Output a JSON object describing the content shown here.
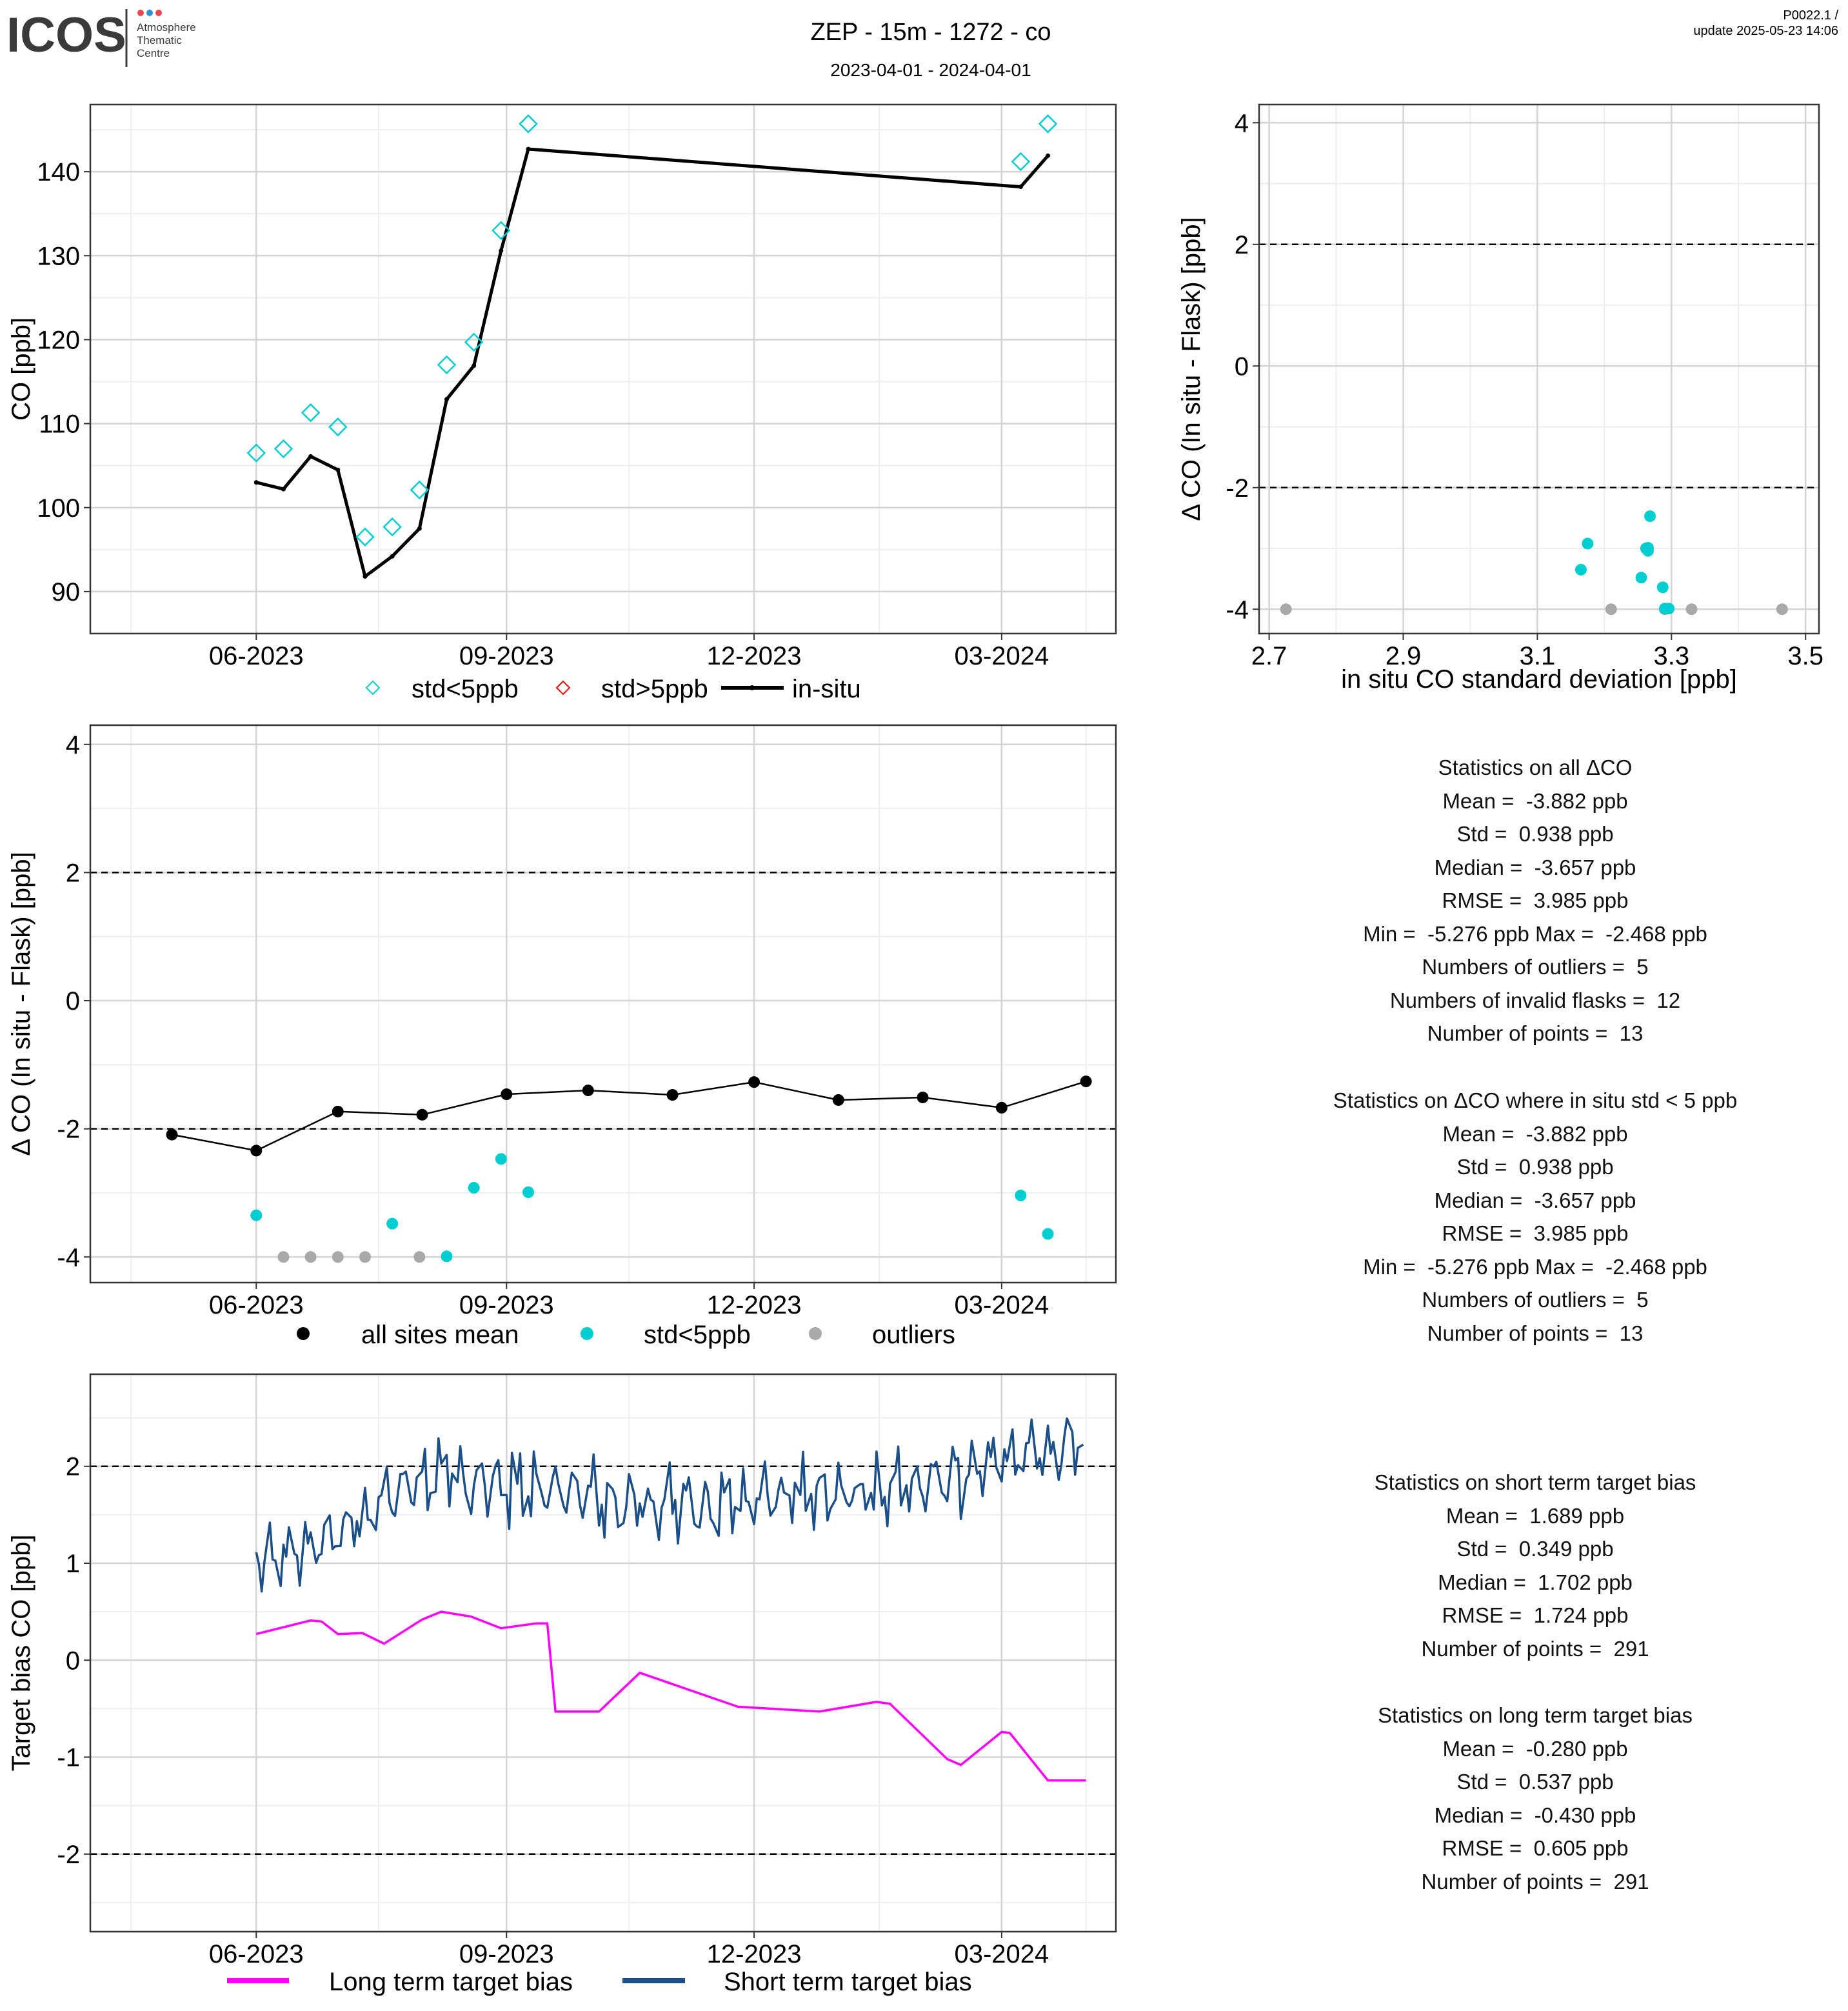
{
  "header": {
    "logo_text": "ICOS",
    "logo_sub": [
      "Atmosphere",
      "Thematic",
      "Centre"
    ],
    "title": "ZEP - 15m - 1272 - co",
    "subtitle": "2023-04-01 - 2024-04-01",
    "version": "P0022.1 /",
    "update": "update  2025-05-23 14:06"
  },
  "colors": {
    "cyan": "#00CED1",
    "grey": "#A9A9A9",
    "black": "#000000",
    "red": "#FF0000",
    "magenta": "#FF00FF",
    "navy": "#1B4F8A",
    "grid_major": "#D3D3D3",
    "grid_minor": "#EEEEEE"
  },
  "legends": {
    "p1": [
      "std<5ppb",
      "std>5ppb",
      "in-situ"
    ],
    "p3": [
      "all sites mean",
      "std<5ppb",
      "outliers"
    ],
    "p4": [
      "Long term target bias",
      "Short term target bias"
    ]
  },
  "stats": {
    "all": {
      "title": "Statistics on all ΔCO",
      "lines": [
        "Mean =  -3.882 ppb",
        "Std =  0.938 ppb",
        "Median =  -3.657 ppb",
        "RMSE =  3.985 ppb",
        "Min =  -5.276 ppb Max =  -2.468 ppb",
        "Numbers of outliers =  5",
        "Numbers of invalid flasks =  12",
        "Number of points =  13"
      ]
    },
    "std5": {
      "title": "Statistics on ΔCO where in situ std < 5 ppb",
      "lines": [
        "Mean =  -3.882 ppb",
        "Std =  0.938 ppb",
        "Median =  -3.657 ppb",
        "RMSE =  3.985 ppb",
        "Min =  -5.276 ppb Max =  -2.468 ppb",
        "Numbers of outliers =  5",
        "Number of points =  13"
      ]
    },
    "short": {
      "title": "Statistics on short term target bias",
      "lines": [
        "Mean =  1.689 ppb",
        "Std =  0.349 ppb",
        "Median =  1.702 ppb",
        "RMSE =  1.724 ppb",
        "Number of points =  291"
      ]
    },
    "long": {
      "title": "Statistics on long term target bias",
      "lines": [
        "Mean =  -0.280 ppb",
        "Std =  0.537 ppb",
        "Median =  -0.430 ppb",
        "RMSE =  0.605 ppb",
        "Number of points =  291"
      ]
    }
  },
  "chart_data": [
    {
      "id": "co_timeseries",
      "type": "line",
      "ylabel": "CO [ppb]",
      "x_ticks": [
        "06-2023",
        "09-2023",
        "12-2023",
        "03-2024"
      ],
      "x_tick_dates": [
        "2023-06-01",
        "2023-09-01",
        "2023-12-01",
        "2024-03-01"
      ],
      "xlim": [
        "2023-04-01",
        "2024-04-12"
      ],
      "ylim": [
        85,
        148
      ],
      "y_ticks": [
        90,
        100,
        110,
        120,
        130,
        140
      ],
      "series": [
        {
          "name": "std<5ppb",
          "x": [
            "2023-06-01",
            "2023-06-11",
            "2023-06-21",
            "2023-07-01",
            "2023-07-11",
            "2023-07-21",
            "2023-07-31",
            "2023-08-10",
            "2023-08-20",
            "2023-08-30",
            "2023-09-09",
            "2024-03-08",
            "2024-03-18"
          ],
          "y": [
            106.5,
            107.0,
            111.3,
            109.6,
            96.5,
            97.7,
            102.1,
            117.0,
            119.7,
            133.0,
            145.7,
            141.2,
            145.7
          ]
        },
        {
          "name": "std>5ppb",
          "x": [],
          "y": []
        },
        {
          "name": "in-situ",
          "x": [
            "2023-06-01",
            "2023-06-11",
            "2023-06-21",
            "2023-07-01",
            "2023-07-11",
            "2023-07-21",
            "2023-07-31",
            "2023-08-10",
            "2023-08-20",
            "2023-08-30",
            "2023-09-09",
            "2024-03-08",
            "2024-03-18"
          ],
          "y": [
            103.0,
            102.2,
            106.1,
            104.5,
            91.8,
            94.2,
            97.5,
            112.9,
            116.9,
            130.6,
            142.7,
            138.2,
            141.9
          ]
        }
      ]
    },
    {
      "id": "delta_vs_std",
      "type": "scatter",
      "xlabel": "in situ CO standard deviation [ppb]",
      "ylabel": "Δ CO (In situ - Flask) [ppb]",
      "xlim": [
        2.685,
        3.52
      ],
      "ylim": [
        -4.4,
        4.3
      ],
      "x_ticks": [
        2.7,
        2.9,
        3.1,
        3.3,
        3.5
      ],
      "y_ticks": [
        -4,
        -2,
        0,
        2,
        4
      ],
      "hlines": [
        2,
        -2
      ],
      "series": [
        {
          "name": "std<5ppb",
          "x": [
            3.165,
            3.175,
            3.255,
            3.262,
            3.265,
            3.265,
            3.268,
            3.287,
            3.29,
            3.296
          ],
          "y": [
            -3.35,
            -2.92,
            -3.48,
            -3.0,
            -3.04,
            -2.99,
            -2.47,
            -3.64,
            -3.99,
            -3.99
          ]
        },
        {
          "name": "outliers",
          "x": [
            2.725,
            3.21,
            3.29,
            3.33,
            3.465
          ],
          "y": [
            -4.0,
            -4.0,
            -4.0,
            -4.0,
            -4.0
          ]
        }
      ]
    },
    {
      "id": "delta_timeseries",
      "type": "scatter",
      "ylabel": "Δ CO (In situ - Flask) [ppb]",
      "x_ticks": [
        "06-2023",
        "09-2023",
        "12-2023",
        "03-2024"
      ],
      "x_tick_dates": [
        "2023-06-01",
        "2023-09-01",
        "2023-12-01",
        "2024-03-01"
      ],
      "xlim": [
        "2023-04-01",
        "2024-04-12"
      ],
      "ylim": [
        -4.4,
        4.3
      ],
      "y_ticks": [
        -4,
        -2,
        0,
        2,
        4
      ],
      "hlines": [
        2,
        -2
      ],
      "series": [
        {
          "name": "all sites mean",
          "x": [
            "2023-05-01",
            "2023-06-01",
            "2023-07-01",
            "2023-08-01",
            "2023-09-01",
            "2023-10-01",
            "2023-11-01",
            "2023-12-01",
            "2024-01-01",
            "2024-02-01",
            "2024-03-01",
            "2024-04-01"
          ],
          "y": [
            -2.09,
            -2.34,
            -1.73,
            -1.78,
            -1.46,
            -1.4,
            -1.47,
            -1.27,
            -1.55,
            -1.51,
            -1.67,
            -1.26
          ]
        },
        {
          "name": "std<5ppb",
          "x": [
            "2023-06-01",
            "2023-07-21",
            "2023-08-20",
            "2023-08-30",
            "2023-09-09",
            "2023-08-10",
            "2024-03-08",
            "2024-03-18"
          ],
          "y": [
            -3.35,
            -3.48,
            -2.92,
            -2.47,
            -2.99,
            -3.99,
            -3.04,
            -3.64
          ]
        },
        {
          "name": "outliers",
          "x": [
            "2023-06-11",
            "2023-06-21",
            "2023-07-01",
            "2023-07-11",
            "2023-07-31"
          ],
          "y": [
            -4.0,
            -4.0,
            -4.0,
            -4.0,
            -4.0
          ]
        }
      ]
    },
    {
      "id": "target_bias",
      "type": "line",
      "ylabel": "Target bias CO [ppb]",
      "x_ticks": [
        "06-2023",
        "09-2023",
        "12-2023",
        "03-2024"
      ],
      "x_tick_dates": [
        "2023-06-01",
        "2023-09-01",
        "2023-12-01",
        "2024-03-01"
      ],
      "xlim": [
        "2023-04-01",
        "2024-04-12"
      ],
      "ylim": [
        -2.8,
        2.95
      ],
      "y_ticks": [
        -2,
        -1,
        0,
        1,
        2
      ],
      "hlines": [
        2,
        -2
      ],
      "series": [
        {
          "name": "Long term target bias",
          "x": [
            "2023-06-01",
            "2023-06-21",
            "2023-06-25",
            "2023-07-01",
            "2023-07-10",
            "2023-07-18",
            "2023-08-01",
            "2023-08-08",
            "2023-08-19",
            "2023-08-30",
            "2023-09-12",
            "2023-09-16",
            "2023-09-19",
            "2023-10-05",
            "2023-10-20",
            "2023-11-25",
            "2023-12-25",
            "2024-01-15",
            "2024-01-20",
            "2024-02-10",
            "2024-02-15",
            "2024-03-01",
            "2024-03-04",
            "2024-03-18",
            "2024-04-01"
          ],
          "y": [
            0.27,
            0.41,
            0.4,
            0.27,
            0.28,
            0.17,
            0.42,
            0.5,
            0.45,
            0.33,
            0.38,
            0.38,
            -0.53,
            -0.53,
            -0.13,
            -0.48,
            -0.53,
            -0.43,
            -0.45,
            -1.02,
            -1.08,
            -0.74,
            -0.75,
            -1.24,
            -1.24
          ]
        },
        {
          "name": "Short term target bias",
          "x": [
            "2023-06-01",
            "2023-07-01",
            "2023-08-01",
            "2023-09-01",
            "2023-10-01",
            "2023-11-01",
            "2023-12-01",
            "2024-01-01",
            "2024-02-01",
            "2024-03-01",
            "2024-04-01"
          ],
          "y": [
            1.0,
            1.3,
            1.9,
            1.8,
            1.7,
            1.6,
            1.65,
            1.7,
            1.8,
            2.1,
            2.2
          ],
          "note_points": 291
        }
      ]
    }
  ]
}
